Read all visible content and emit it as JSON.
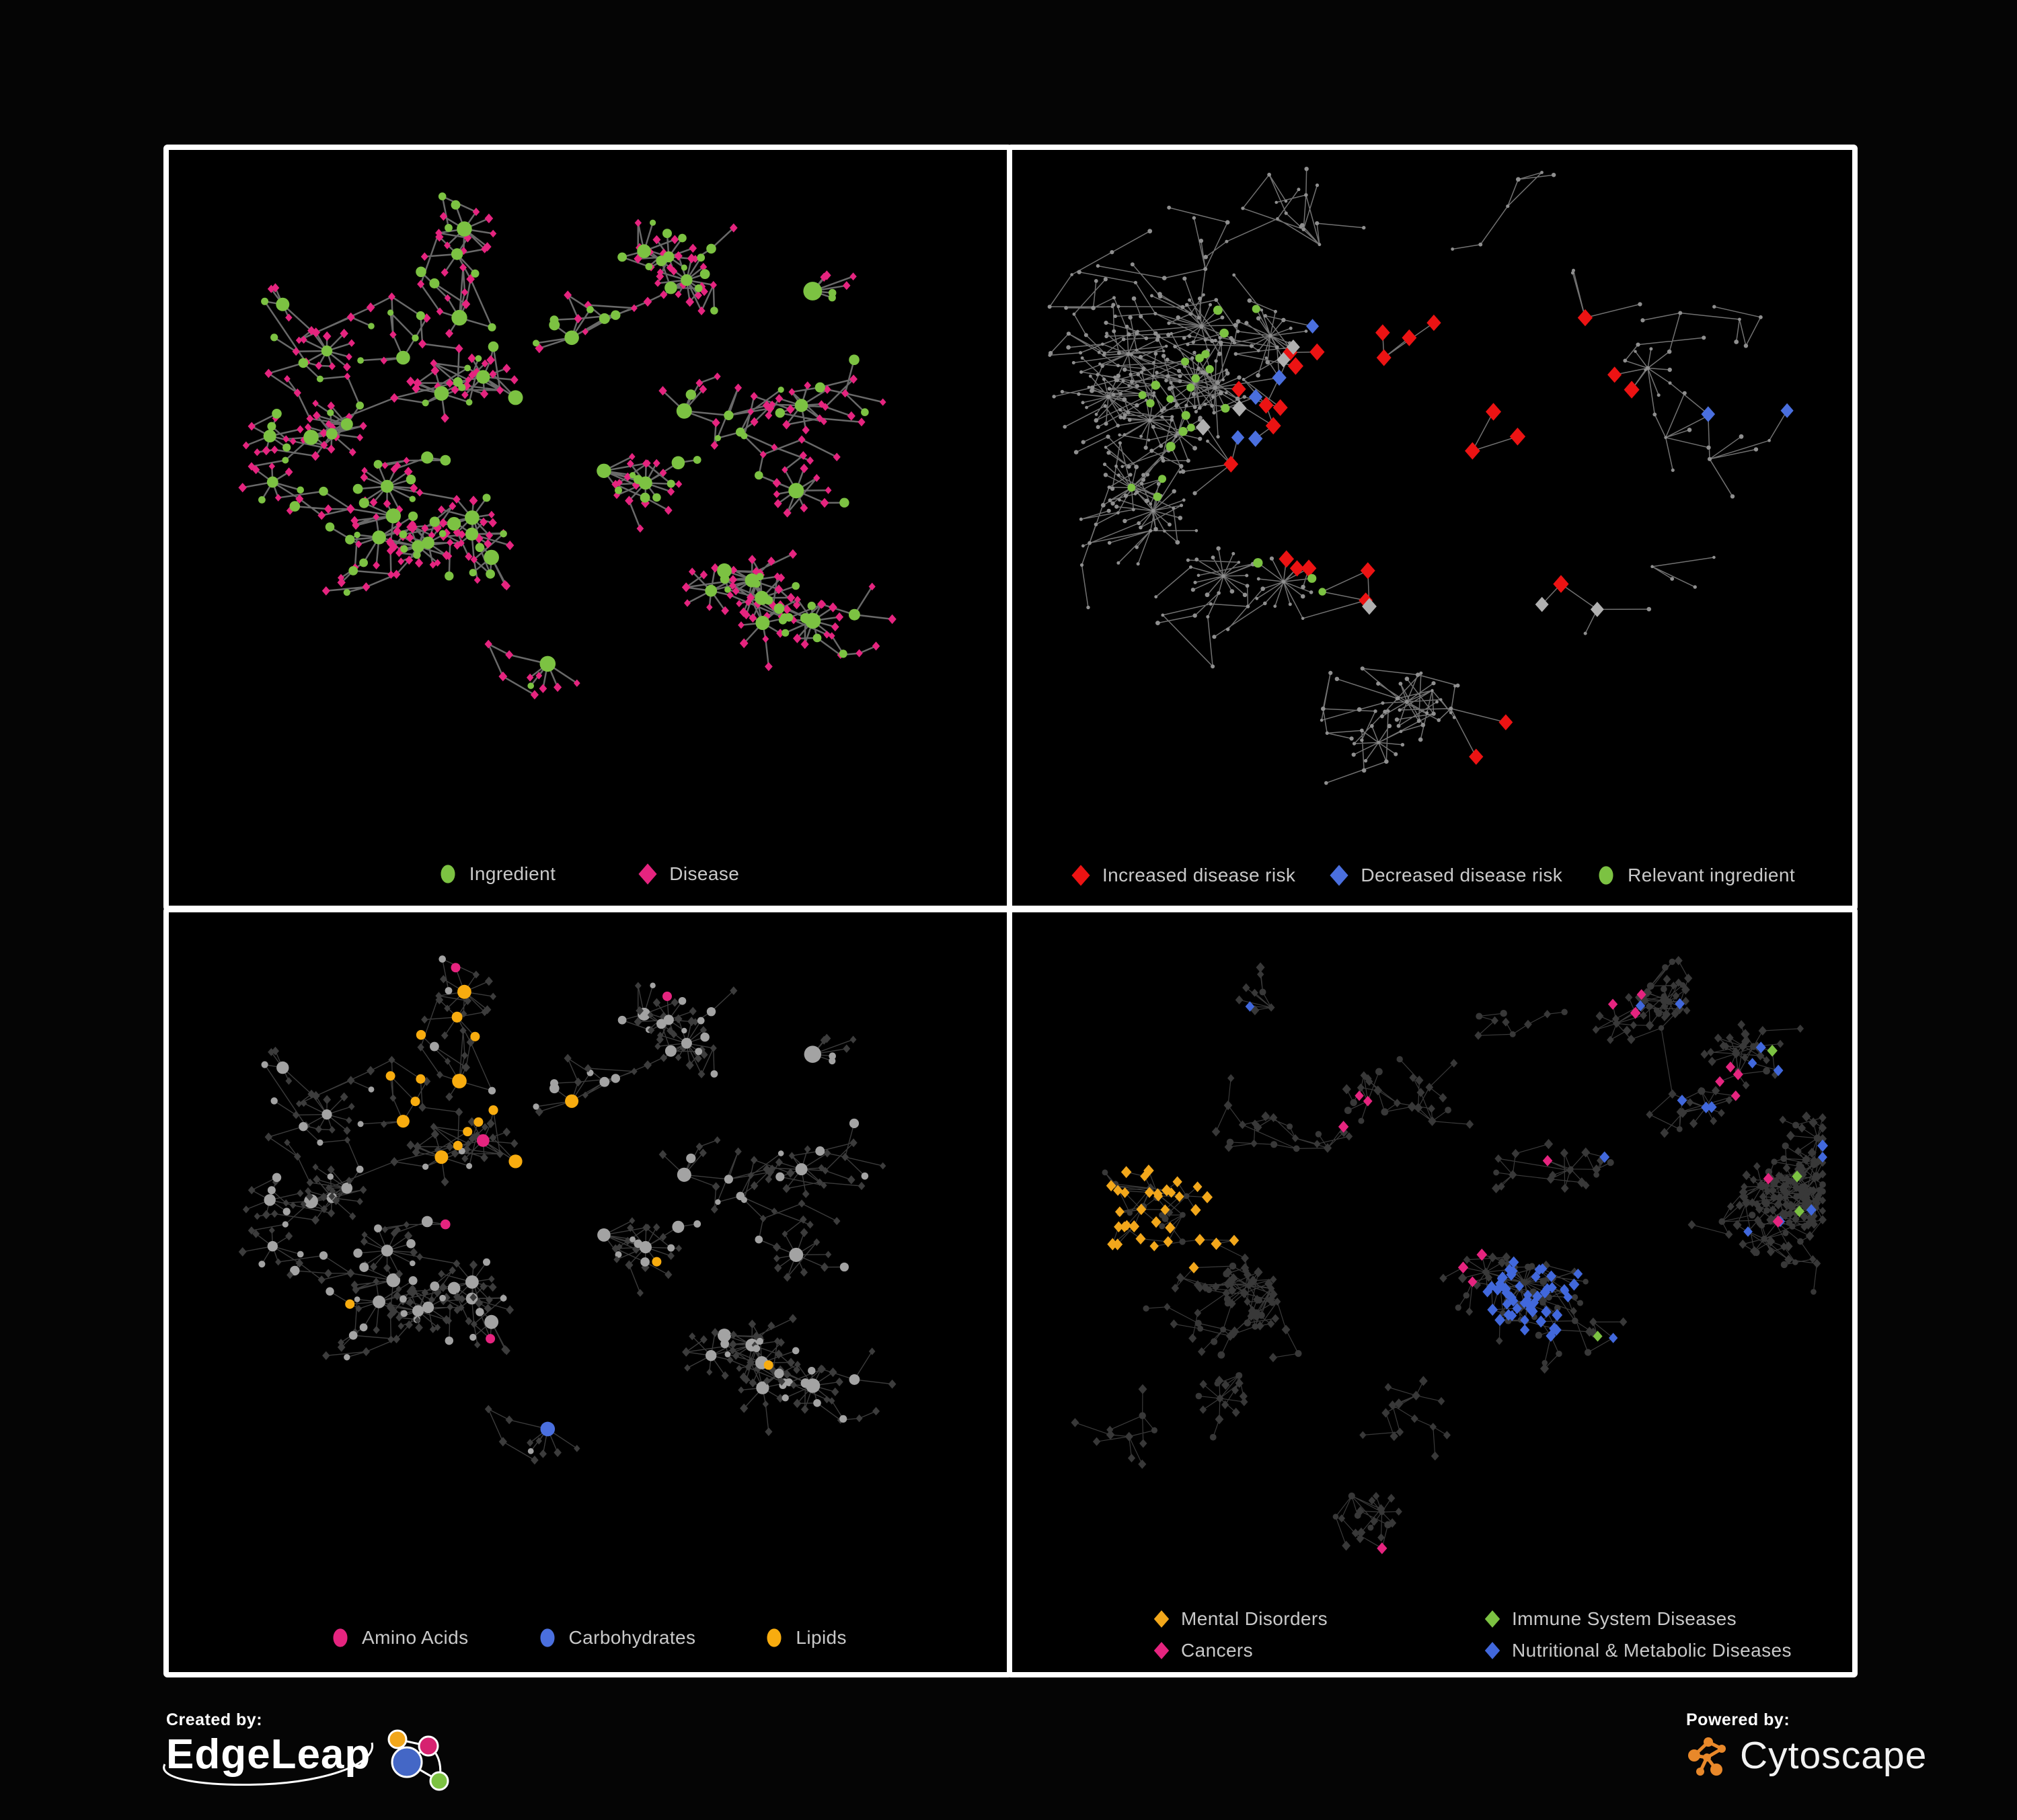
{
  "branding": {
    "created_by_label": "Created by:",
    "created_by_name": "EdgeLeap",
    "powered_by_label": "Powered by:",
    "powered_by_name": "Cytoscape"
  },
  "colors": {
    "page_background": "#050505",
    "panel_background": "#000000",
    "panel_border": "#ffffff",
    "legend_text": "#c9c9c9",
    "edgeleap_logo": {
      "orange": "#f2a71b",
      "pink": "#d62270",
      "blue": "#4467c6",
      "green": "#7cc242",
      "stroke": "#ffffff"
    },
    "cytoscape_orange": "#e8882a"
  },
  "panels": [
    {
      "name": "ingredient-disease",
      "legend_rows": [
        [
          {
            "shape": "circle",
            "color": "#7cc242",
            "label": "Ingredient"
          },
          {
            "shape": "diamond",
            "color": "#e5247f",
            "label": "Disease"
          }
        ]
      ],
      "palette": {
        "ingredient": "#7cc242",
        "disease": "#e5247f",
        "edge": "#6f6f6f"
      }
    },
    {
      "name": "disease-risk",
      "legend_rows": [
        [
          {
            "shape": "diamond",
            "color": "#ec1313",
            "label": "Increased disease risk"
          },
          {
            "shape": "diamond",
            "color": "#4a6fde",
            "label": "Decreased disease risk"
          },
          {
            "shape": "circle",
            "color": "#7cc242",
            "label": "Relevant ingredient"
          }
        ]
      ],
      "palette": {
        "node": "#8f8f8f",
        "edge": "#7d7d7d",
        "increased": "#ec1313",
        "decreased": "#4a6fde",
        "neutral": "#b0b0b0",
        "ingredient": "#7cc242"
      }
    },
    {
      "name": "nutrient-classes",
      "legend_rows": [
        [
          {
            "shape": "circle",
            "color": "#e5247f",
            "label": "Amino Acids"
          },
          {
            "shape": "circle",
            "color": "#4a6fde",
            "label": "Carbohydrates"
          },
          {
            "shape": "circle",
            "color": "#f8ac0f",
            "label": "Lipids"
          }
        ]
      ],
      "palette": {
        "node": "#a3a3a3",
        "disease": "#3c3c3c",
        "edge": "#9b9b9b",
        "amino": "#e5247f",
        "carb": "#4a6fde",
        "lipid": "#f8ac0f"
      }
    },
    {
      "name": "disease-classes",
      "legend_rows": [
        [
          {
            "shape": "diamond",
            "color": "#f2a71b",
            "label": "Mental Disorders"
          },
          {
            "shape": "diamond",
            "color": "#7cc242",
            "label": "Immune System Diseases"
          }
        ],
        [
          {
            "shape": "diamond",
            "color": "#e5247f",
            "label": "Cancers"
          },
          {
            "shape": "diamond",
            "color": "#4168dc",
            "label": "Nutritional & Metabolic Diseases"
          }
        ]
      ],
      "palette": {
        "node": "#383838",
        "edge": "#8a8a8a",
        "mental": "#f2a71b",
        "immune": "#7cc242",
        "cancer": "#e5247f",
        "nutritional": "#4168dc"
      }
    }
  ]
}
